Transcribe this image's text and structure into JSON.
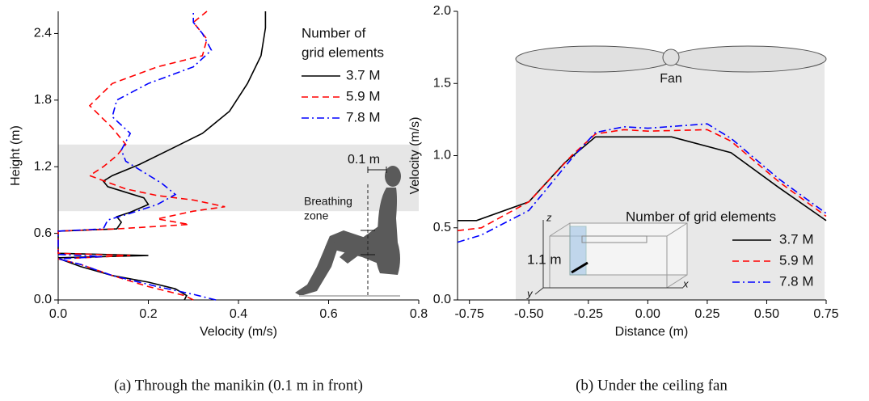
{
  "chart_data": [
    {
      "type": "line",
      "caption": "(a) Through the manikin (0.1 m in front)",
      "xlabel": "Velocity (m/s)",
      "ylabel": "Height (m)",
      "xlim": [
        0,
        0.8
      ],
      "ylim": [
        0,
        2.6
      ],
      "xticks": [
        {
          "value": 0,
          "label": "0.0"
        },
        0.2,
        0.4,
        0.6,
        0.8
      ],
      "yticks": [
        {
          "value": 0,
          "label": "0.0"
        },
        0.6,
        1.2,
        1.8,
        2.4
      ],
      "band": [
        0.8,
        1.4
      ],
      "band_color": "#e6e6e6",
      "legend": "upper right",
      "legend_title": [
        "Number of",
        "grid elements"
      ],
      "annotations": {
        "distance": "0.1 m",
        "zone": [
          "Breathing",
          "zone"
        ]
      },
      "series": [
        {
          "name": "3.7 M",
          "color": "#000000",
          "dash": "solid",
          "x": [
            0.28,
            0.285,
            0.26,
            0.2,
            0.12,
            0.05,
            0.01,
            0.0,
            0.2,
            0.0,
            0.0,
            0.13,
            0.14,
            0.13,
            0.16,
            0.2,
            0.19,
            0.15,
            0.11,
            0.1,
            0.12,
            0.18,
            0.25,
            0.32,
            0.38,
            0.42,
            0.45,
            0.46,
            0.46
          ],
          "y": [
            0,
            0.04,
            0.1,
            0.16,
            0.22,
            0.3,
            0.36,
            0.38,
            0.4,
            0.42,
            0.62,
            0.64,
            0.7,
            0.75,
            0.79,
            0.86,
            0.92,
            0.97,
            1.02,
            1.07,
            1.12,
            1.22,
            1.36,
            1.5,
            1.7,
            1.95,
            2.2,
            2.45,
            2.6
          ]
        },
        {
          "name": "5.9 M",
          "color": "#ff0000",
          "dash": "dashed",
          "x": [
            0.3,
            0.28,
            0.2,
            0.12,
            0.05,
            0.0,
            0.16,
            0.0,
            0.0,
            0.13,
            0.29,
            0.22,
            0.3,
            0.37,
            0.3,
            0.22,
            0.15,
            0.07,
            0.1,
            0.13,
            0.15,
            0.12,
            0.07,
            0.12,
            0.22,
            0.32,
            0.33,
            0.3,
            0.33
          ],
          "y": [
            0,
            0.04,
            0.12,
            0.22,
            0.32,
            0.37,
            0.4,
            0.42,
            0.62,
            0.64,
            0.68,
            0.73,
            0.8,
            0.84,
            0.9,
            0.94,
            1.0,
            1.12,
            1.2,
            1.3,
            1.4,
            1.55,
            1.75,
            1.95,
            2.1,
            2.2,
            2.35,
            2.5,
            2.6
          ]
        },
        {
          "name": "7.8 M",
          "color": "#0000ff",
          "dash": "dashdot",
          "x": [
            0.35,
            0.3,
            0.22,
            0.12,
            0.05,
            0.0,
            0.1,
            0.0,
            0.0,
            0.1,
            0.11,
            0.16,
            0.22,
            0.26,
            0.23,
            0.19,
            0.15,
            0.14,
            0.16,
            0.12,
            0.13,
            0.2,
            0.3,
            0.34,
            0.32,
            0.3,
            0.3
          ],
          "y": [
            0,
            0.05,
            0.12,
            0.22,
            0.32,
            0.37,
            0.39,
            0.41,
            0.62,
            0.64,
            0.72,
            0.78,
            0.86,
            0.95,
            1.05,
            1.15,
            1.25,
            1.35,
            1.5,
            1.65,
            1.8,
            1.95,
            2.1,
            2.25,
            2.4,
            2.5,
            2.6
          ]
        }
      ]
    },
    {
      "type": "line",
      "caption": "(b) Under the ceiling fan",
      "xlabel": "Distance (m)",
      "ylabel": "Velocity (m/s)",
      "xlim": [
        -0.8,
        0.75
      ],
      "ylim": [
        0,
        2
      ],
      "xticks": [
        -0.75,
        {
          "value": -0.5,
          "label": "-0.50"
        },
        -0.25,
        {
          "value": 0,
          "label": "0.00"
        },
        0.25,
        {
          "value": 0.5,
          "label": "0.50"
        },
        0.75
      ],
      "yticks": [
        {
          "value": 0,
          "label": "0.0"
        },
        0.5,
        {
          "value": 1,
          "label": "1.0"
        },
        1.5,
        {
          "value": 2,
          "label": "2.0"
        }
      ],
      "legend": "lower right",
      "legend_title": [
        "Number of grid elements"
      ],
      "annotations": {
        "fan": "Fan",
        "height": "1.1 m",
        "axes": [
          "z",
          "x",
          "y"
        ]
      },
      "series": [
        {
          "name": "3.7 M",
          "color": "#000000",
          "dash": "solid",
          "x": [
            -0.8,
            -0.72,
            -0.5,
            -0.35,
            -0.22,
            0.1,
            0.35,
            0.55,
            0.75
          ],
          "y": [
            0.55,
            0.55,
            0.68,
            0.95,
            1.13,
            1.13,
            1.02,
            0.78,
            0.55
          ]
        },
        {
          "name": "5.9 M",
          "color": "#ff0000",
          "dash": "dashed",
          "x": [
            -0.8,
            -0.7,
            -0.5,
            -0.32,
            -0.22,
            -0.1,
            0.0,
            0.25,
            0.35,
            0.55,
            0.75
          ],
          "y": [
            0.48,
            0.5,
            0.68,
            1.0,
            1.15,
            1.18,
            1.17,
            1.18,
            1.1,
            0.82,
            0.58
          ]
        },
        {
          "name": "7.8 M",
          "color": "#0000ff",
          "dash": "dashdot",
          "x": [
            -0.8,
            -0.7,
            -0.5,
            -0.32,
            -0.22,
            -0.1,
            0.0,
            0.25,
            0.35,
            0.55,
            0.75
          ],
          "y": [
            0.4,
            0.45,
            0.62,
            0.98,
            1.16,
            1.2,
            1.19,
            1.22,
            1.12,
            0.84,
            0.6
          ]
        }
      ]
    }
  ]
}
